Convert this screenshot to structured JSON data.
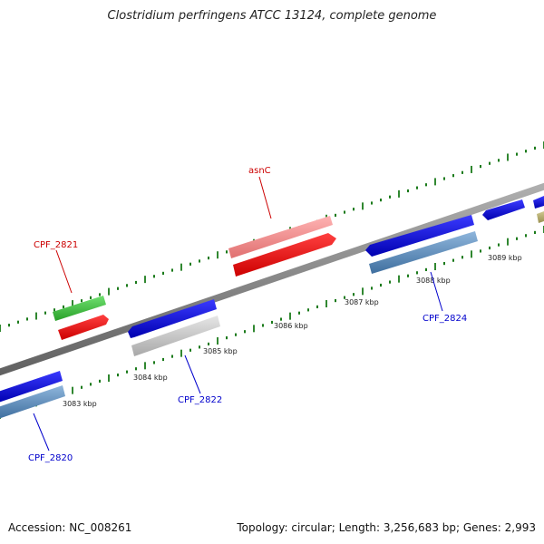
{
  "title": "Clostridium perfringens ATCC 13124, complete genome",
  "footer": {
    "accession": "Accession: NC_008261",
    "summary": "Topology: circular; Length: 3,256,683 bp; Genes: 2,993"
  },
  "colors": {
    "backbone": "#808080",
    "tick": "#1a7a1a",
    "forward_label": "#cc0000",
    "reverse_label": "#0000cc"
  },
  "scale_labels": [
    "3083 kbp",
    "3084 kbp",
    "3085 kbp",
    "3086 kbp",
    "3087 kbp",
    "3088 kbp",
    "3089 kbp"
  ],
  "features": [
    {
      "name": "CPF_2821",
      "strand": "forward",
      "color": "#e01010"
    },
    {
      "name": "asnC",
      "strand": "forward",
      "color": "#e01010"
    },
    {
      "name": "CPF_2822",
      "strand": "reverse",
      "color": "#0000ee"
    },
    {
      "name": "CPF_2824",
      "strand": "reverse",
      "color": "#0000ee"
    },
    {
      "name": "CPF_2820",
      "strand": "reverse",
      "color": "#0000ee"
    }
  ]
}
